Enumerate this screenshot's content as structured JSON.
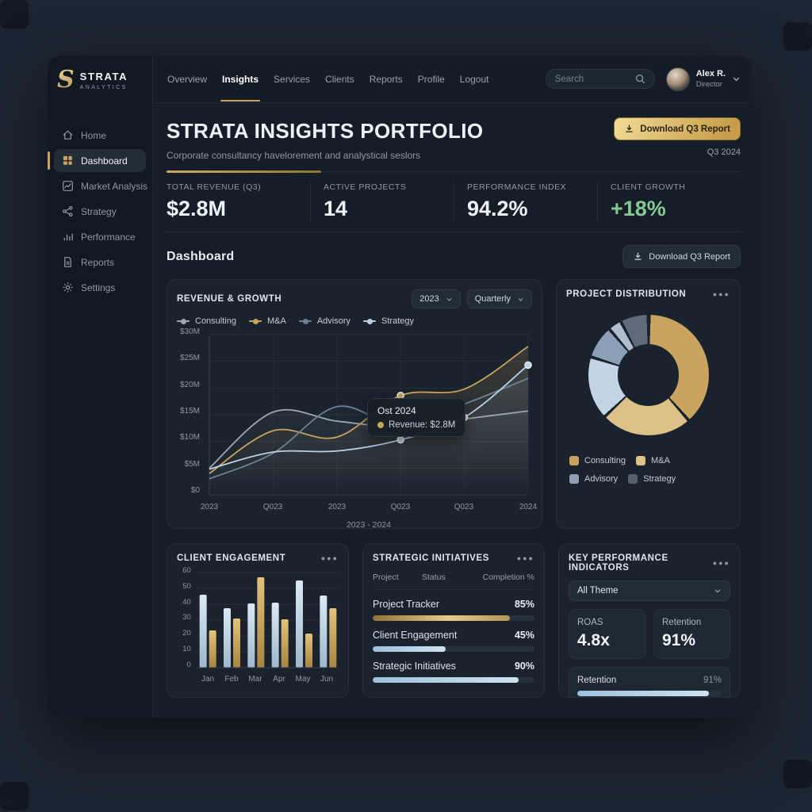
{
  "brand": {
    "initial": "S",
    "name": "STRATA",
    "subname": "ANALYTICS"
  },
  "topnav": {
    "items": [
      {
        "label": "Overview",
        "active": false
      },
      {
        "label": "Insights",
        "active": true
      },
      {
        "label": "Services",
        "active": false
      },
      {
        "label": "Clients",
        "active": false
      },
      {
        "label": "Reports",
        "active": false
      },
      {
        "label": "Profile",
        "active": false
      },
      {
        "label": "Logout",
        "active": false
      }
    ],
    "search_placeholder": "Search",
    "user": {
      "name": "Alex R.",
      "role": "Director"
    }
  },
  "sidebar": {
    "items": [
      {
        "label": "Home",
        "active": false
      },
      {
        "label": "Dashboard",
        "active": true
      },
      {
        "label": "Market Analysis",
        "active": false
      },
      {
        "label": "Strategy",
        "active": false
      },
      {
        "label": "Performance",
        "active": false
      },
      {
        "label": "Reports",
        "active": false
      },
      {
        "label": "Settings",
        "active": false
      }
    ]
  },
  "header": {
    "title": "STRATA INSIGHTS PORTFOLIO",
    "subtitle": "Corporate consultancy havelorement and analystical seslors",
    "download_label": "Download Q3 Report",
    "period": "Q3 2024"
  },
  "stats": [
    {
      "label": "TOTAL REVENUE (Q3)",
      "value": "$2.8M"
    },
    {
      "label": "ACTIVE PROJECTS",
      "value": "14"
    },
    {
      "label": "PERFORMANCE INDEX",
      "value": "94.2%"
    },
    {
      "label": "CLIENT GROWTH",
      "value": "+18%",
      "color": "#84c892"
    }
  ],
  "section": {
    "title": "Dashboard",
    "download_label": "Download Q3 Report"
  },
  "chart_data": [
    {
      "id": "revenue_growth",
      "type": "line",
      "title": "REVENUE & GROWTH",
      "controls": [
        "2023",
        "Quarterly"
      ],
      "x_labels": [
        "2023",
        "Q023",
        "2023",
        "Q023",
        "Q023",
        "2024"
      ],
      "xlabel": "2023 - 2024",
      "y_ticks": [
        "$30M",
        "$25M",
        "$20M",
        "$15M",
        "$10M",
        "$5M",
        "$0"
      ],
      "ylim": [
        0,
        30
      ],
      "grid": true,
      "legend_position": "top",
      "series": [
        {
          "name": "Consulting",
          "color": "#9ba6b1",
          "values": [
            5,
            15.5,
            13.8,
            12.8,
            14.2,
            15.7
          ],
          "dots": []
        },
        {
          "name": "M&A",
          "color": "#c9a35f",
          "values": [
            4,
            12,
            10.8,
            18.6,
            19.8,
            27.8
          ],
          "dots": [
            3
          ]
        },
        {
          "name": "Advisory",
          "color": "#6c8097",
          "values": [
            3,
            7.8,
            16.5,
            12.9,
            17,
            21.8
          ],
          "dots": []
        },
        {
          "name": "Strategy",
          "color": "#b9d1e8",
          "values": [
            4.8,
            8,
            8.2,
            10.3,
            14.5,
            24.3
          ],
          "dots": [
            3,
            4,
            5
          ]
        }
      ],
      "tooltip": {
        "title": "Ost 2024",
        "label": "Revenue: $2.8M",
        "marker_color": "#c9a35f"
      }
    },
    {
      "id": "project_distribution",
      "type": "pie",
      "title": "PROJECT DISTRIBUTION",
      "menu": "...",
      "segments": [
        {
          "color": "#c8a45f",
          "from": 2,
          "to": 137
        },
        {
          "color": "#dec189",
          "from": 140,
          "to": 225
        },
        {
          "color": "#c2d4e6",
          "from": 228,
          "to": 286
        },
        {
          "color": "#8ba0b6",
          "from": 289,
          "to": 318
        },
        {
          "color": "#aebecd",
          "from": 321,
          "to": 331
        },
        {
          "color": "#5e6a77",
          "from": 334,
          "to": 358
        }
      ],
      "legend": [
        {
          "label": "Consulting",
          "color": "#c8a45f"
        },
        {
          "label": "M&A",
          "color": "#dec189"
        },
        {
          "label": "Advisory",
          "color": "#8ba0b6"
        },
        {
          "label": "Strategy",
          "color": "#55616e"
        }
      ]
    },
    {
      "id": "client_engagement",
      "type": "bar",
      "title": "CLIENT ENGAGEMENT",
      "menu": "...",
      "categories": [
        "Jan",
        "Feb",
        "Mar",
        "Apr",
        "May",
        "Jun"
      ],
      "y_ticks": [
        "60",
        "50",
        "40",
        "30",
        "20",
        "10",
        "0"
      ],
      "ylim": [
        0,
        60
      ],
      "series": [
        {
          "name": "engagement-primary",
          "color_top": "#dbe9f4",
          "color_bottom": "#9fb8cc",
          "values": [
            46,
            37.5,
            40.5,
            41,
            55,
            45.5
          ]
        },
        {
          "name": "engagement-secondary",
          "color_top": "#e3c27c",
          "color_bottom": "#a8853f",
          "values": [
            23.5,
            31,
            57,
            30.5,
            21.5,
            37.5
          ]
        }
      ]
    },
    {
      "id": "strategic_initiatives",
      "type": "table",
      "title": "STRATEGIC INITIATIVES",
      "menu": "...",
      "columns": [
        "Project",
        "Status",
        "Completion %"
      ],
      "rows": [
        {
          "project": "Project Tracker",
          "completion": "85%",
          "pct": 85,
          "bar_color": "gold"
        },
        {
          "project": "Client Engagement",
          "completion": "45%",
          "pct": 45,
          "bar_color": "blue"
        },
        {
          "project": "Strategic Initiatives",
          "completion": "90%",
          "pct": 90,
          "bar_color": "blue"
        }
      ]
    }
  ],
  "kpi": {
    "title": "KEY PERFORMANCE INDICATORS",
    "menu": "...",
    "filter": "All Theme",
    "boxes": [
      {
        "label": "ROAS",
        "value": "4.8x"
      },
      {
        "label": "Retention",
        "value": "91%"
      }
    ],
    "progress": {
      "label": "Retention",
      "value": "91%",
      "pct": 91
    }
  }
}
